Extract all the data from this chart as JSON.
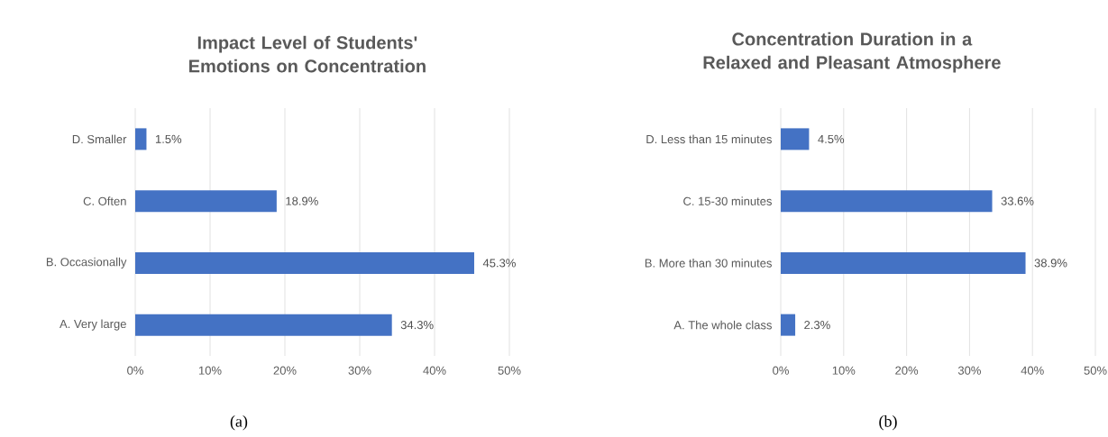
{
  "chart_data": [
    {
      "type": "bar",
      "orientation": "horizontal",
      "title": "Impact Level of Students' Emotions on Concentration",
      "categories": [
        "D. Smaller",
        "C. Often",
        "B. Occasionally",
        "A. Very large"
      ],
      "values": [
        1.5,
        18.9,
        45.3,
        34.3
      ],
      "value_labels": [
        "1.5%",
        "18.9%",
        "45.3%",
        "34.3%"
      ],
      "color": "#4472c4",
      "xlim": [
        0,
        50
      ],
      "xticks": [
        {
          "value": 0,
          "label": "0%"
        },
        {
          "value": 10,
          "label": "10%"
        },
        {
          "value": 20,
          "label": "20%"
        },
        {
          "value": 30,
          "label": "30%"
        },
        {
          "value": 40,
          "label": "40%"
        },
        {
          "value": 50,
          "label": "50%"
        }
      ],
      "grid": "x",
      "annotations": [
        "(a)"
      ]
    },
    {
      "type": "bar",
      "orientation": "horizontal",
      "title": "Concentration Duration in a Relaxed and Pleasant Atmosphere",
      "categories": [
        "D. Less than 15 minutes",
        "C. 15-30 minutes",
        "B. More than 30 minutes",
        "A. The whole class"
      ],
      "values": [
        4.5,
        33.6,
        38.9,
        2.3
      ],
      "value_labels": [
        "4.5%",
        "33.6%",
        "38.9%",
        "2.3%"
      ],
      "color": "#4472c4",
      "xlim": [
        0,
        50
      ],
      "xticks": [
        {
          "value": 0,
          "label": "0%"
        },
        {
          "value": 10,
          "label": "10%"
        },
        {
          "value": 20,
          "label": "20%"
        },
        {
          "value": 30,
          "label": "30%"
        },
        {
          "value": 40,
          "label": "40%"
        },
        {
          "value": 50,
          "label": "50%"
        }
      ],
      "grid": "x",
      "annotations": [
        "(b)"
      ]
    }
  ]
}
